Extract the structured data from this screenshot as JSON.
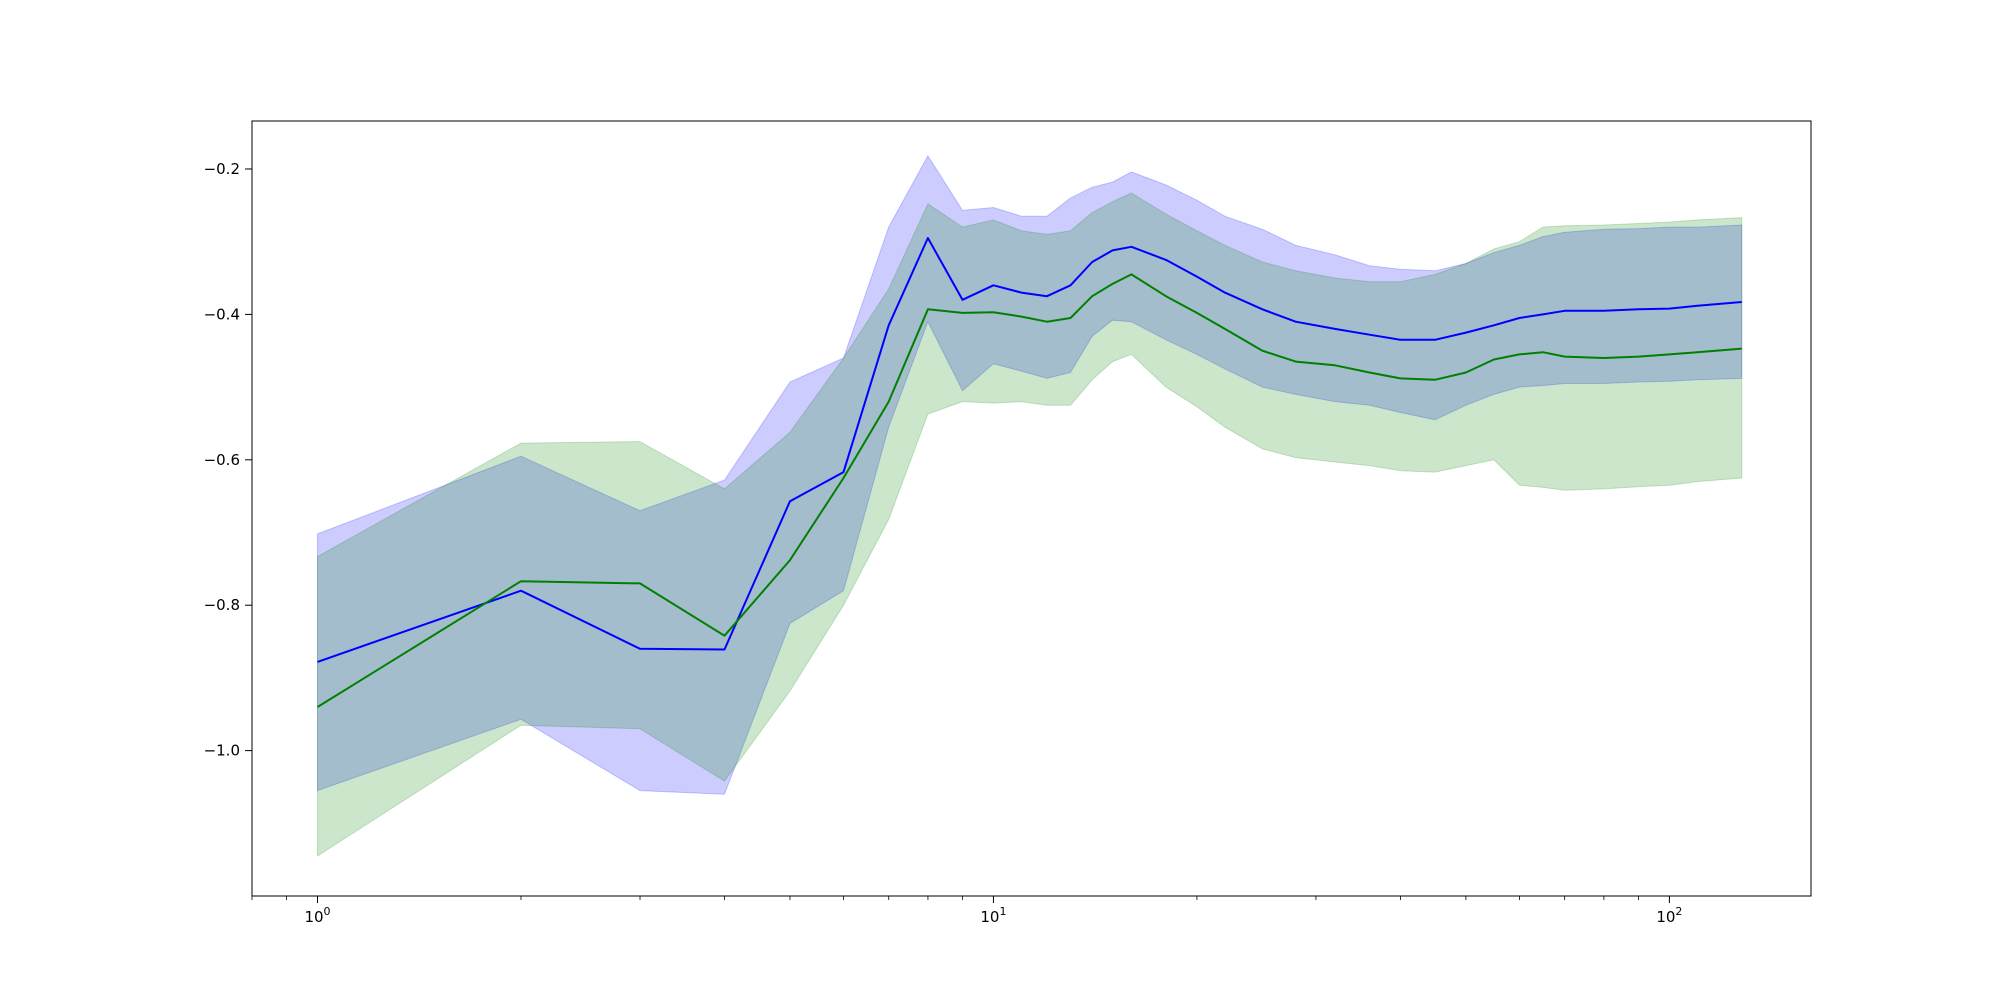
{
  "chart_data": {
    "type": "line",
    "title": "",
    "xlabel": "",
    "ylabel": "",
    "xscale": "log",
    "xlim": [
      0.8,
      162
    ],
    "ylim": [
      -1.2,
      -0.134
    ],
    "grid": false,
    "legend": "none",
    "x_tick_labels": [
      {
        "value": 1,
        "base": "10",
        "exp": "0"
      },
      {
        "value": 10,
        "base": "10",
        "exp": "1"
      },
      {
        "value": 100,
        "base": "10",
        "exp": "2"
      }
    ],
    "y_ticks": [
      -1.0,
      -0.8,
      -0.6,
      -0.4,
      -0.2
    ],
    "y_tick_labels": [
      "−1.0",
      "−0.8",
      "−0.6",
      "−0.4",
      "−0.2"
    ],
    "series": [
      {
        "color": "#0000ff",
        "band_color": "#0000ff",
        "band_opacity": 0.2,
        "x": [
          1,
          2,
          3,
          4,
          5,
          6,
          7,
          8,
          9,
          10,
          11,
          12,
          13,
          14,
          15,
          16,
          18,
          20,
          22,
          25,
          28,
          32,
          36,
          40,
          45,
          50,
          55,
          60,
          65,
          70,
          80,
          90,
          100,
          110,
          128
        ],
        "mean": [
          -0.878,
          -0.78,
          -0.86,
          -0.861,
          -0.657,
          -0.617,
          -0.415,
          -0.295,
          -0.38,
          -0.36,
          -0.37,
          -0.375,
          -0.36,
          -0.328,
          -0.312,
          -0.307,
          -0.325,
          -0.348,
          -0.37,
          -0.393,
          -0.41,
          -0.42,
          -0.428,
          -0.435,
          -0.435,
          -0.425,
          -0.415,
          -0.405,
          -0.4,
          -0.395,
          -0.395,
          -0.393,
          -0.392,
          -0.388,
          -0.383
        ],
        "upper": [
          -0.702,
          -0.595,
          -0.67,
          -0.628,
          -0.493,
          -0.46,
          -0.28,
          -0.182,
          -0.257,
          -0.253,
          -0.265,
          -0.265,
          -0.24,
          -0.225,
          -0.218,
          -0.204,
          -0.222,
          -0.243,
          -0.265,
          -0.283,
          -0.305,
          -0.318,
          -0.333,
          -0.338,
          -0.34,
          -0.33,
          -0.315,
          -0.305,
          -0.293,
          -0.287,
          -0.283,
          -0.282,
          -0.28,
          -0.28,
          -0.277
        ],
        "lower": [
          -1.055,
          -0.957,
          -1.055,
          -1.06,
          -0.825,
          -0.78,
          -0.555,
          -0.41,
          -0.505,
          -0.468,
          -0.478,
          -0.488,
          -0.48,
          -0.43,
          -0.408,
          -0.41,
          -0.435,
          -0.455,
          -0.475,
          -0.5,
          -0.51,
          -0.52,
          -0.525,
          -0.535,
          -0.545,
          -0.525,
          -0.51,
          -0.5,
          -0.498,
          -0.495,
          -0.495,
          -0.493,
          -0.492,
          -0.49,
          -0.488
        ]
      },
      {
        "color": "#008000",
        "band_color": "#008000",
        "band_opacity": 0.2,
        "x": [
          1,
          2,
          3,
          4,
          5,
          6,
          7,
          8,
          9,
          10,
          11,
          12,
          13,
          14,
          15,
          16,
          18,
          20,
          22,
          25,
          28,
          32,
          36,
          40,
          45,
          50,
          55,
          60,
          65,
          70,
          80,
          90,
          100,
          110,
          128
        ],
        "mean": [
          -0.94,
          -0.767,
          -0.77,
          -0.842,
          -0.738,
          -0.625,
          -0.52,
          -0.393,
          -0.398,
          -0.397,
          -0.403,
          -0.41,
          -0.405,
          -0.375,
          -0.358,
          -0.345,
          -0.375,
          -0.398,
          -0.42,
          -0.45,
          -0.465,
          -0.47,
          -0.48,
          -0.488,
          -0.49,
          -0.48,
          -0.462,
          -0.455,
          -0.452,
          -0.458,
          -0.46,
          -0.458,
          -0.455,
          -0.452,
          -0.447
        ],
        "upper": [
          -0.733,
          -0.577,
          -0.575,
          -0.64,
          -0.562,
          -0.46,
          -0.365,
          -0.248,
          -0.28,
          -0.27,
          -0.285,
          -0.29,
          -0.285,
          -0.26,
          -0.245,
          -0.233,
          -0.262,
          -0.285,
          -0.305,
          -0.328,
          -0.34,
          -0.35,
          -0.355,
          -0.355,
          -0.345,
          -0.33,
          -0.31,
          -0.3,
          -0.28,
          -0.278,
          -0.277,
          -0.275,
          -0.273,
          -0.27,
          -0.267
        ],
        "lower": [
          -1.145,
          -0.965,
          -0.97,
          -1.042,
          -0.918,
          -0.8,
          -0.682,
          -0.537,
          -0.52,
          -0.522,
          -0.52,
          -0.525,
          -0.525,
          -0.49,
          -0.465,
          -0.455,
          -0.5,
          -0.527,
          -0.555,
          -0.585,
          -0.597,
          -0.603,
          -0.608,
          -0.615,
          -0.617,
          -0.608,
          -0.6,
          -0.635,
          -0.638,
          -0.642,
          -0.64,
          -0.637,
          -0.635,
          -0.63,
          -0.625
        ]
      }
    ]
  }
}
